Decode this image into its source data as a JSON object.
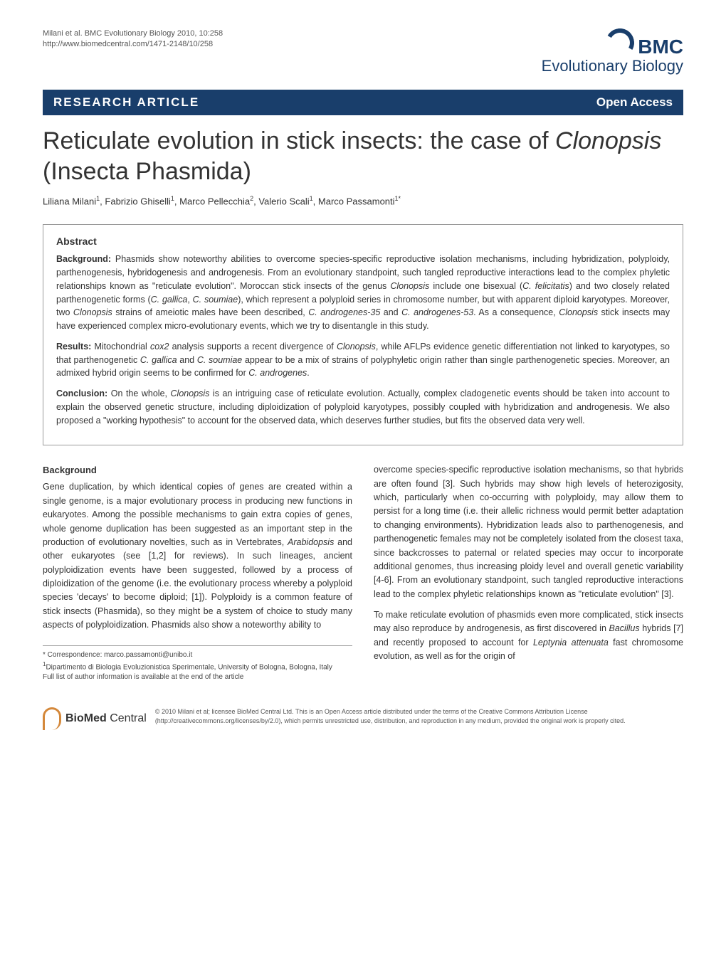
{
  "header": {
    "citation_line1": "Milani et al. BMC Evolutionary Biology 2010, 10:258",
    "citation_line2": "http://www.biomedcentral.com/1471-2148/10/258",
    "logo_text": "BMC",
    "logo_subtitle": "Evolutionary Biology"
  },
  "banner": {
    "left": "RESEARCH ARTICLE",
    "right": "Open Access"
  },
  "title_html": "Reticulate evolution in stick insects: the case of <em>Clonopsis</em> (Insecta Phasmida)",
  "authors_html": "Liliana Milani<sup>1</sup>, Fabrizio Ghiselli<sup>1</sup>, Marco Pellecchia<sup>2</sup>, Valerio Scali<sup>1</sup>, Marco Passamonti<sup>1*</sup>",
  "abstract": {
    "heading": "Abstract",
    "background_html": "<strong>Background:</strong> Phasmids show noteworthy abilities to overcome species-specific reproductive isolation mechanisms, including hybridization, polyploidy, parthenogenesis, hybridogenesis and androgenesis. From an evolutionary standpoint, such tangled reproductive interactions lead to the complex phyletic relationships known as \"reticulate evolution\". Moroccan stick insects of the genus <em>Clonopsis</em> include one bisexual (<em>C. felicitatis</em>) and two closely related parthenogenetic forms (<em>C. gallica</em>, <em>C. soumiae</em>), which represent a polyploid series in chromosome number, but with apparent diploid karyotypes. Moreover, two <em>Clonopsis</em> strains of ameiotic males have been described, <em>C. androgenes-35</em> and <em>C. androgenes-53</em>. As a consequence, <em>Clonopsis</em> stick insects may have experienced complex micro-evolutionary events, which we try to disentangle in this study.",
    "results_html": "<strong>Results:</strong> Mitochondrial <em>cox2</em> analysis supports a recent divergence of <em>Clonopsis</em>, while AFLPs evidence genetic differentiation not linked to karyotypes, so that parthenogenetic <em>C. gallica</em> and <em>C. soumiae</em> appear to be a mix of strains of polyphyletic origin rather than single parthenogenetic species. Moreover, an admixed hybrid origin seems to be confirmed for <em>C. androgenes</em>.",
    "conclusion_html": "<strong>Conclusion:</strong> On the whole, <em>Clonopsis</em> is an intriguing case of reticulate evolution. Actually, complex cladogenetic events should be taken into account to explain the observed genetic structure, including diploidization of polyploid karyotypes, possibly coupled with hybridization and androgenesis. We also proposed a \"working hypothesis\" to account for the observed data, which deserves further studies, but fits the observed data very well."
  },
  "body": {
    "col1_heading": "Background",
    "col1_html": "Gene duplication, by which identical copies of genes are created within a single genome, is a major evolutionary process in producing new functions in eukaryotes. Among the possible mechanisms to gain extra copies of genes, whole genome duplication has been suggested as an important step in the production of evolutionary novelties, such as in Vertebrates, <em>Arabidopsis</em> and other eukaryotes (see [1,2] for reviews). In such lineages, ancient polyploidization events have been suggested, followed by a process of diploidization of the genome (i.e. the evolutionary process whereby a polyploid species 'decays' to become diploid; [1]). Polyploidy is a common feature of stick insects (Phasmida), so they might be a system of choice to study many aspects of polyploidization. Phasmids also show a noteworthy ability to",
    "col2_para1_html": "overcome species-specific reproductive isolation mechanisms, so that hybrids are often found [3]. Such hybrids may show high levels of heterozigosity, which, particularly when co-occurring with polyploidy, may allow them to persist for a long time (i.e. their allelic richness would permit better adaptation to changing environments). Hybridization leads also to parthenogenesis, and parthenogenetic females may not be completely isolated from the closest taxa, since backcrosses to paternal or related species may occur to incorporate additional genomes, thus increasing ploidy level and overall genetic variability [4-6]. From an evolutionary standpoint, such tangled reproductive interactions lead to the complex phyletic relationships known as \"reticulate evolution\" [3].",
    "col2_para2_html": "To make reticulate evolution of phasmids even more complicated, stick insects may also reproduce by androgenesis, as first discovered in <em>Bacillus</em> hybrids [7] and recently proposed to account for <em>Leptynia attenuata</em> fast chromosome evolution, as well as for the origin of"
  },
  "footnotes": {
    "line1": "* Correspondence: marco.passamonti@unibo.it",
    "line2_html": "<sup>1</sup>Dipartimento di Biologia Evoluzionistica Sperimentale, University of Bologna, Bologna, Italy",
    "line3": "Full list of author information is available at the end of the article"
  },
  "footer": {
    "bmc_logo_html": "<strong>BioMed</strong> Central",
    "license_text": "© 2010 Milani et al; licensee BioMed Central Ltd. This is an Open Access article distributed under the terms of the Creative Commons Attribution License (http://creativecommons.org/licenses/by/2.0), which permits unrestricted use, distribution, and reproduction in any medium, provided the original work is properly cited."
  },
  "colors": {
    "banner_bg": "#193e6b",
    "logo_color": "#193e6b",
    "bmc_icon_color": "#d4883a",
    "text_color": "#333333",
    "border_color": "#999999"
  },
  "typography": {
    "title_fontsize": 34,
    "body_fontsize": 12.5,
    "footnote_fontsize": 10,
    "banner_fontsize": 17,
    "authors_fontsize": 13
  }
}
